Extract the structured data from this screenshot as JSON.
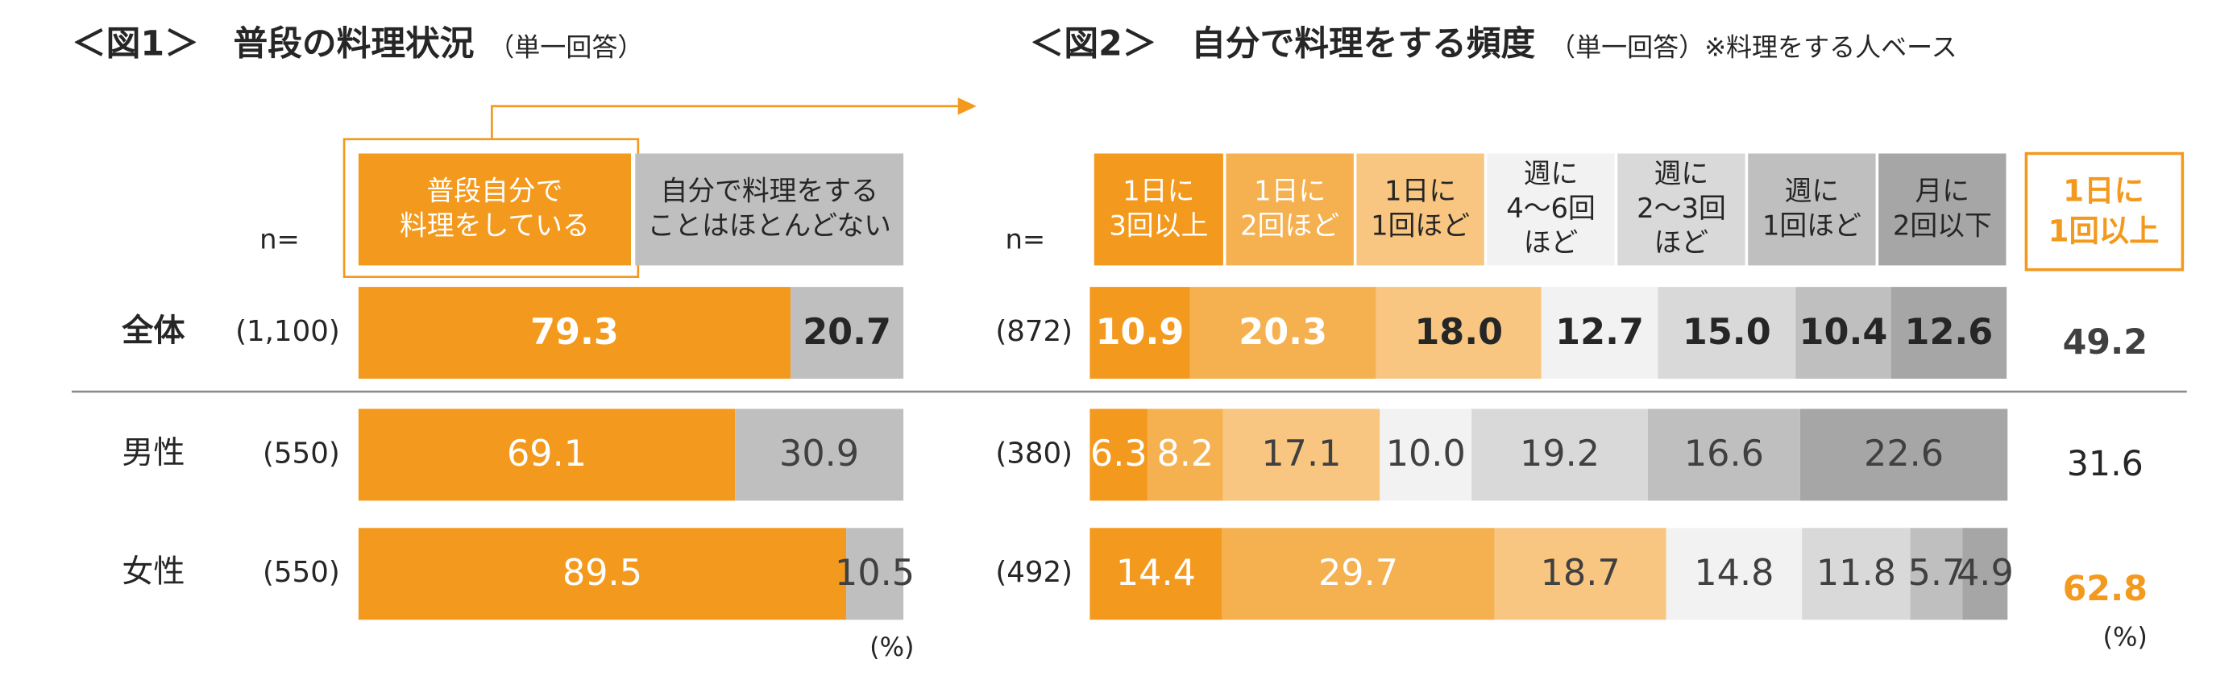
{
  "chart_data": [
    {
      "type": "bar",
      "orientation": "horizontal",
      "stacked": true,
      "title": "＜図1＞　普段の料理状況",
      "subtitle": "（単一回答）",
      "n_label": "n=",
      "unit": "(%)",
      "categories": [
        "全体",
        "男性",
        "女性"
      ],
      "sample_sizes": [
        "(1,100)",
        "(550)",
        "(550)"
      ],
      "xlim": [
        0,
        100
      ],
      "series": [
        {
          "name": "普段自分で\n料理をしている",
          "color": "#f39a1e",
          "values": [
            79.3,
            69.1,
            89.5
          ],
          "value_labels": [
            "79.3",
            "69.1",
            "89.5"
          ]
        },
        {
          "name": "自分で料理をする\nことはほとんどない",
          "color": "#bfbfbf",
          "values": [
            20.7,
            30.9,
            10.5
          ],
          "value_labels": [
            "20.7",
            "30.9",
            "10.5"
          ]
        }
      ]
    },
    {
      "type": "bar",
      "orientation": "horizontal",
      "stacked": true,
      "title": "＜図2＞　自分で料理をする頻度",
      "subtitle": "（単一回答）※料理をする人ベース",
      "n_label": "n=",
      "unit": "(%)",
      "sample_sizes": [
        "(872)",
        "(380)",
        "(492)"
      ],
      "xlim": [
        0,
        100
      ],
      "series": [
        {
          "name": "1日に\n3回以上",
          "color": "#f39a1e",
          "values": [
            10.9,
            6.3,
            14.4
          ],
          "value_labels": [
            "10.9",
            "6.3",
            "14.4"
          ]
        },
        {
          "name": "1日に\n2回ほど",
          "color": "#f5b050",
          "values": [
            20.3,
            8.2,
            29.7
          ],
          "value_labels": [
            "20.3",
            "8.2",
            "29.7"
          ]
        },
        {
          "name": "1日に\n1回ほど",
          "color": "#f8c680",
          "values": [
            18.0,
            17.1,
            18.7
          ],
          "value_labels": [
            "18.0",
            "17.1",
            "18.7"
          ]
        },
        {
          "name": "週に\n4～6回\nほど",
          "color": "#f2f2f2",
          "values": [
            12.7,
            10.0,
            14.8
          ],
          "value_labels": [
            "12.7",
            "10.0",
            "14.8"
          ]
        },
        {
          "name": "週に\n2～3回\nほど",
          "color": "#d9d9d9",
          "values": [
            15.0,
            19.2,
            11.8
          ],
          "value_labels": [
            "15.0",
            "19.2",
            "11.8"
          ]
        },
        {
          "name": "週に\n1回ほど",
          "color": "#bfbfbf",
          "values": [
            10.4,
            16.6,
            5.7
          ],
          "value_labels": [
            "10.4",
            "16.6",
            "5.7"
          ]
        },
        {
          "name": "月に\n2回以下",
          "color": "#a6a6a6",
          "values": [
            12.6,
            22.6,
            4.9
          ],
          "value_labels": [
            "12.6",
            "22.6",
            "4.9"
          ]
        }
      ],
      "summary": {
        "name": "1日に\n1回以上",
        "values": [
          49.2,
          31.6,
          62.8
        ],
        "value_labels": [
          "49.2",
          "31.6",
          "62.8"
        ]
      }
    }
  ]
}
